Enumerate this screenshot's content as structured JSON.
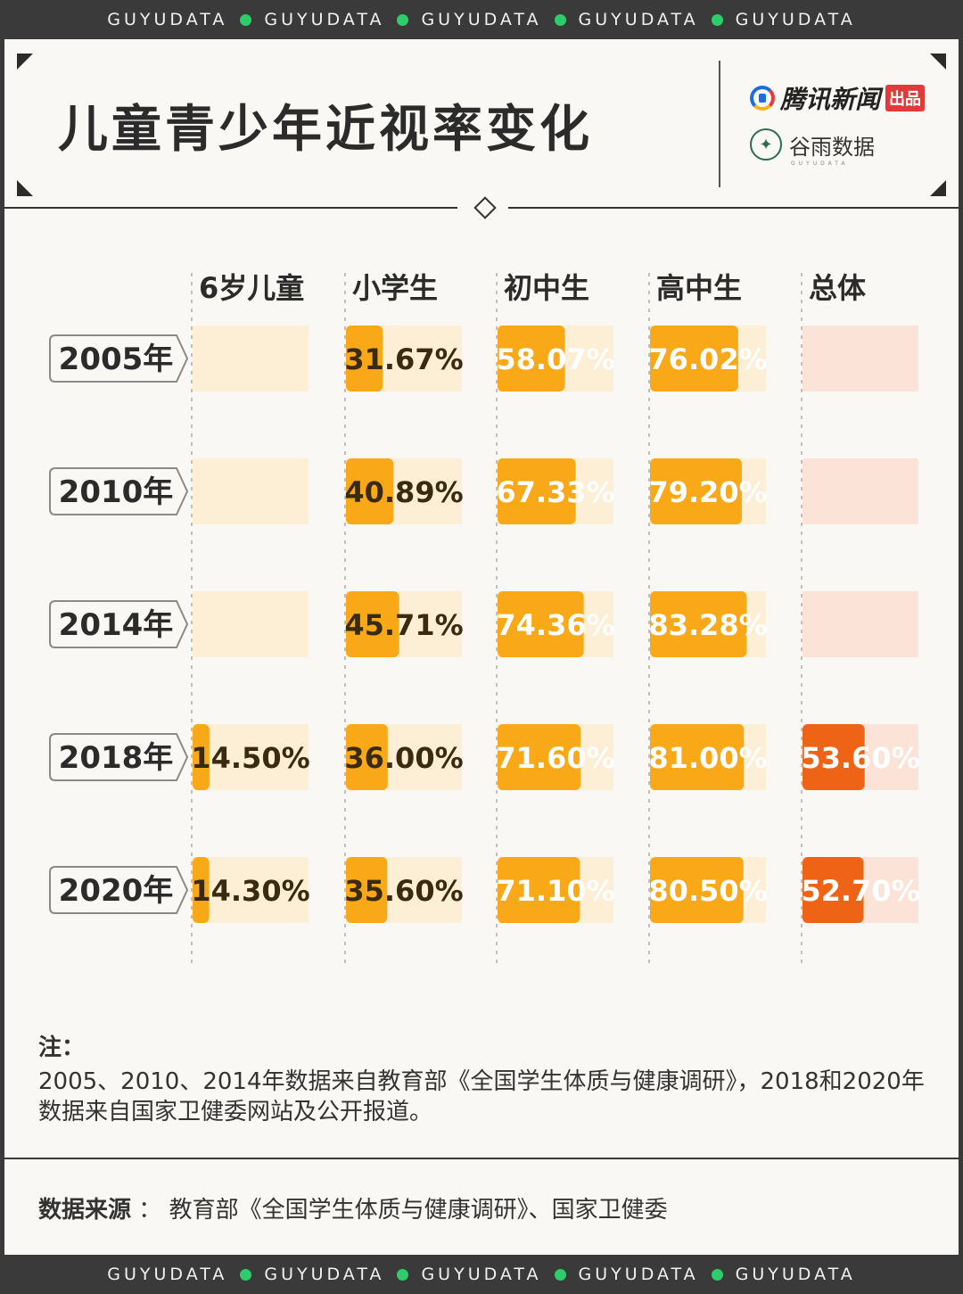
{
  "strip": {
    "words": [
      "GUYUDATA",
      "GUYUDATA",
      "GUYUDATA",
      "GUYUDATA",
      "GUYUDATA"
    ],
    "dot_color": "#2ecc6a"
  },
  "header": {
    "title": "儿童青少年近视率变化",
    "brand_primary": "腾讯新闻",
    "brand_primary_tag": "出品",
    "brand_secondary": "谷雨数据",
    "brand_secondary_sub": "GUYUDATA"
  },
  "chart_data": {
    "type": "table",
    "title": "儿童青少年近视率变化",
    "columns": [
      "6岁儿童",
      "小学生",
      "初中生",
      "高中生",
      "总体"
    ],
    "rows": [
      "2005年",
      "2010年",
      "2014年",
      "2018年",
      "2020年"
    ],
    "values": [
      [
        null,
        31.67,
        58.07,
        76.02,
        null
      ],
      [
        null,
        40.89,
        67.33,
        79.2,
        null
      ],
      [
        null,
        45.71,
        74.36,
        83.28,
        null
      ],
      [
        14.5,
        36.0,
        71.6,
        81.0,
        53.6
      ],
      [
        14.3,
        35.6,
        71.1,
        80.5,
        52.7
      ]
    ],
    "labels": [
      [
        "",
        "31.67%",
        "58.07%",
        "76.02%",
        ""
      ],
      [
        "",
        "40.89%",
        "67.33%",
        "79.20%",
        ""
      ],
      [
        "",
        "45.71%",
        "74.36%",
        "83.28%",
        ""
      ],
      [
        "14.50%",
        "36.00%",
        "71.60%",
        "81.00%",
        "53.60%"
      ],
      [
        "14.30%",
        "35.60%",
        "71.10%",
        "80.50%",
        "52.70%"
      ]
    ],
    "unit": "%",
    "scale_max": 100,
    "colors": {
      "bar": "#f9a818",
      "bar_total": "#ee6316",
      "track": "#fdeed6",
      "track_total": "#fbe3d7"
    }
  },
  "notes": {
    "heading": "注：",
    "text": "2005、2010、2014年数据来自教育部《全国学生体质与健康调研》，2018和2020年数据来自国家卫健委网站及公开报道。"
  },
  "source": {
    "label": "数据来源",
    "separator": "：",
    "text": "教育部《全国学生体质与健康调研》、国家卫健委"
  }
}
